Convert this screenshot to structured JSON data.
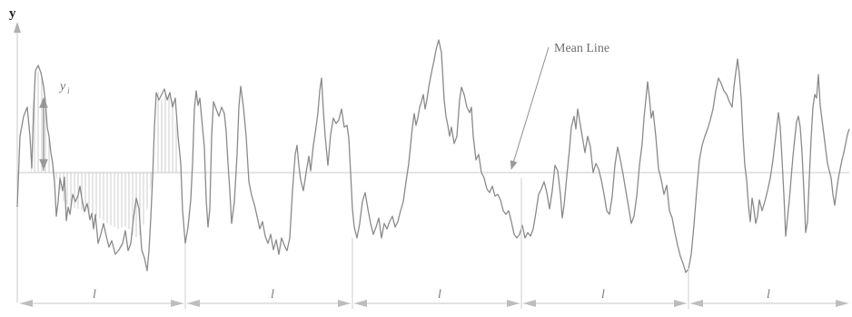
{
  "axis": {
    "y_label": "y"
  },
  "annotations": {
    "mean_line_label": "Mean Line",
    "ordinate_label": "y",
    "ordinate_subscript": "i"
  },
  "segments": {
    "label": "l",
    "count": 5
  },
  "colors": {
    "profile": "#8a8a8a",
    "mean_line": "#bdbdbd",
    "hatch": "#b5b5b5",
    "arrow": "#9a9a9a",
    "text": "#6f6f6f",
    "axis_label": "#222222"
  }
}
